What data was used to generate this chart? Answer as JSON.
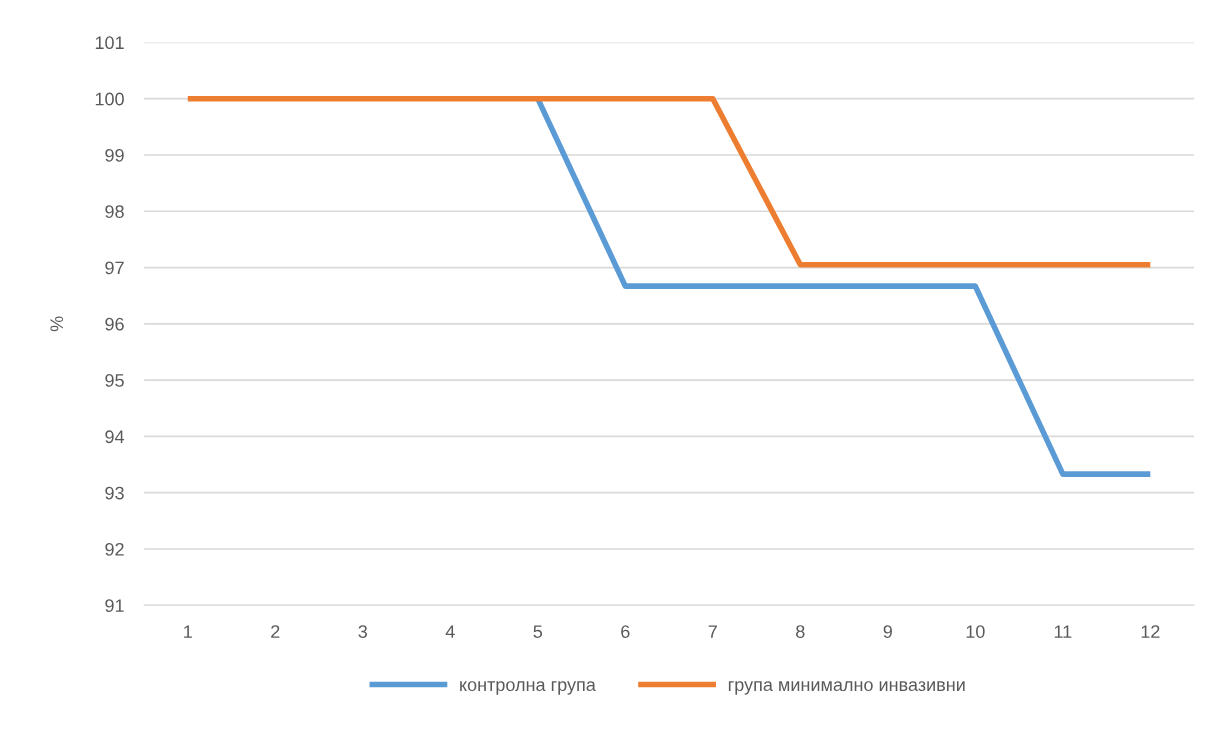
{
  "chart_data": {
    "type": "line",
    "ylabel": "%",
    "categories": [
      "1",
      "2",
      "3",
      "4",
      "5",
      "6",
      "7",
      "8",
      "9",
      "10",
      "11",
      "12"
    ],
    "series": [
      {
        "name": "контролна група",
        "color": "#5b9bd5",
        "values": [
          null,
          null,
          null,
          null,
          100,
          96.67,
          96.67,
          96.67,
          96.67,
          96.67,
          93.33,
          93.33
        ]
      },
      {
        "name": "група минимално инвазивни",
        "color": "#ed7d31",
        "values": [
          100,
          100,
          100,
          100,
          100,
          100,
          100,
          97.05,
          97.05,
          97.05,
          97.05,
          97.05
        ]
      }
    ],
    "ylim": [
      91,
      101
    ],
    "yticks": [
      91,
      92,
      93,
      94,
      95,
      96,
      97,
      98,
      99,
      100,
      101
    ],
    "grid": "y",
    "legend": "bottom",
    "marker": "none",
    "line_style": "solid"
  }
}
